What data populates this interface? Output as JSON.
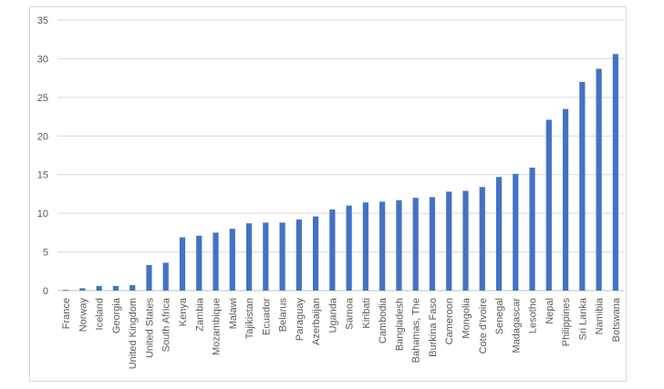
{
  "chart_data": {
    "type": "bar",
    "title": "",
    "xlabel": "",
    "ylabel": "",
    "ylim": [
      0,
      35
    ],
    "yticks": [
      0,
      5,
      10,
      15,
      20,
      25,
      30,
      35
    ],
    "grid": true,
    "legend": "none",
    "bar_color": "#4472c4",
    "categories": [
      "France",
      "Norway",
      "Iceland",
      "Georgia",
      "United Kingdom",
      "United States",
      "South Africa",
      "Kenya",
      "Zambia",
      "Mozambique",
      "Malawi",
      "Tajikistan",
      "Ecuador",
      "Belarus",
      "Paraguay",
      "Azerbaijan",
      "Uganda",
      "Samoa",
      "Kiribati",
      "Cambodia",
      "Bangladesh",
      "Bahamas, The",
      "Burkina Faso",
      "Cameroon",
      "Mongolia",
      "Cote d'Ivoire",
      "Senegal",
      "Madagascar",
      "Lesotho",
      "Nepal",
      "Philippines",
      "Sri Lanka",
      "Namibia",
      "Botswana"
    ],
    "values": [
      0.1,
      0.3,
      0.6,
      0.6,
      0.7,
      3.3,
      3.6,
      6.9,
      7.1,
      7.5,
      8.0,
      8.7,
      8.8,
      8.8,
      9.2,
      9.6,
      10.5,
      11.0,
      11.4,
      11.5,
      11.7,
      12.0,
      12.1,
      12.8,
      12.9,
      13.4,
      14.7,
      15.1,
      15.9,
      22.1,
      23.5,
      27.0,
      28.7,
      30.6
    ]
  }
}
